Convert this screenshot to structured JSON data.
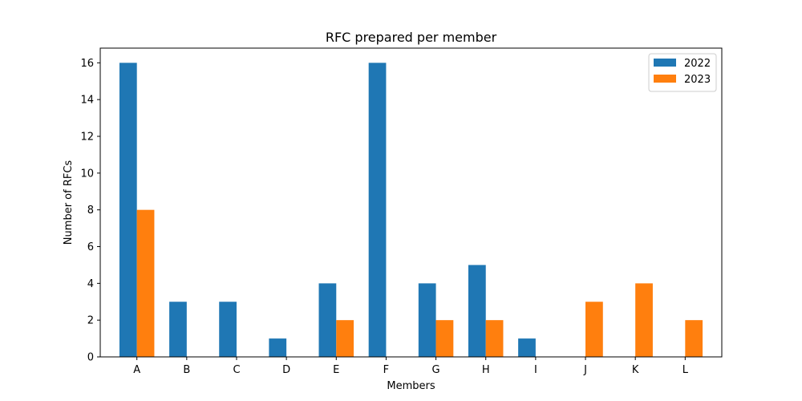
{
  "chart_data": {
    "type": "bar",
    "title": "RFC prepared per member",
    "xlabel": "Members",
    "ylabel": "Number of RFCs",
    "categories": [
      "A",
      "B",
      "C",
      "D",
      "E",
      "F",
      "G",
      "H",
      "I",
      "J",
      "K",
      "L"
    ],
    "series": [
      {
        "name": "2022",
        "color": "#1f77b4",
        "values": [
          16,
          3,
          3,
          1,
          4,
          16,
          4,
          5,
          1,
          0,
          0,
          0
        ]
      },
      {
        "name": "2023",
        "color": "#ff7f0e",
        "values": [
          8,
          0,
          0,
          0,
          2,
          0,
          2,
          2,
          0,
          3,
          4,
          2
        ]
      }
    ],
    "ylim": [
      0,
      16.8
    ],
    "yticks": [
      0,
      2,
      4,
      6,
      8,
      10,
      12,
      14,
      16
    ],
    "grid": false,
    "legend_position": "top-right"
  }
}
